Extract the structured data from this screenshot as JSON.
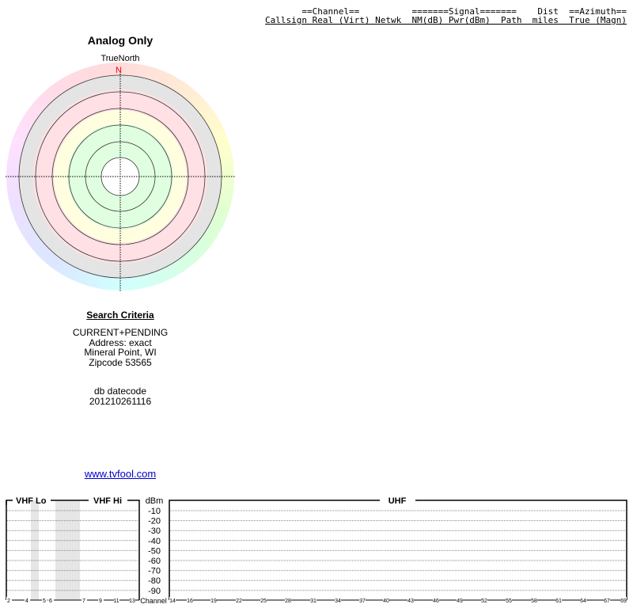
{
  "table_header": {
    "group_line": "      ==Channel==          =======Signal=======    Dist  ==Azimuth==",
    "column_line": "Callsign Real (Virt) Netwk  NM(dB) Pwr(dBm)  Path  miles  True (Magn)"
  },
  "polar": {
    "title": "Analog Only",
    "reference": "TrueNorth",
    "north_label": "N",
    "band_colors": {
      "gray": "#e4e4e4",
      "pink": "#ffe0e4",
      "yellow": "#ffffe0",
      "green": "#e0ffe0"
    },
    "north_color": "#ee0000"
  },
  "search_criteria": {
    "title": "Search Criteria",
    "lines": [
      "CURRENT+PENDING",
      "Address: exact",
      "Mineral Point, WI",
      "Zipcode 53565"
    ],
    "db_label": "db datecode",
    "db_value": "201210261116"
  },
  "link": "www.tvfool.com",
  "spectrum": {
    "vhf_lo_label": "VHF Lo",
    "vhf_hi_label": "VHF Hi",
    "uhf_label": "UHF",
    "unit_label": "dBm",
    "channel_label": "Channel",
    "dbm_ticks": [
      "-10",
      "-20",
      "-30",
      "-40",
      "-50",
      "-60",
      "-70",
      "-80",
      "-90"
    ],
    "vhf_channels": [
      "2",
      "4",
      "5",
      "6",
      "7",
      "9",
      "11",
      "13"
    ],
    "uhf_channels": [
      "14",
      "16",
      "19",
      "22",
      "25",
      "28",
      "31",
      "34",
      "37",
      "40",
      "43",
      "46",
      "49",
      "52",
      "55",
      "58",
      "61",
      "64",
      "67",
      "69"
    ]
  }
}
